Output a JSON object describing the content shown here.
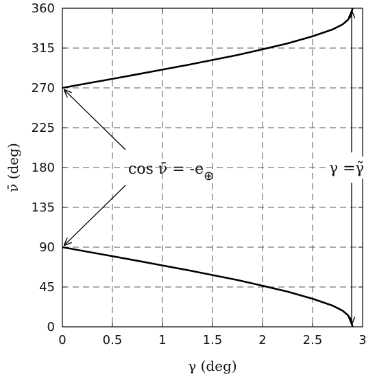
{
  "chart_data": {
    "type": "line",
    "xlabel": "γ (deg)",
    "ylabel": "ν̄ (deg)",
    "xlim": [
      0,
      3
    ],
    "ylim": [
      0,
      360
    ],
    "xticks": [
      "0",
      "0.5",
      "1",
      "1.5",
      "2",
      "2.5",
      "3"
    ],
    "yticks": [
      "0",
      "45",
      "90",
      "135",
      "180",
      "225",
      "270",
      "315",
      "360"
    ],
    "grid": true,
    "series": [
      {
        "x": [
          0,
          0.25,
          0.5,
          0.75,
          1.0,
          1.25,
          1.5,
          1.75,
          2.0,
          2.25,
          2.5,
          2.7,
          2.8,
          2.85,
          2.88,
          2.9
        ],
        "y": [
          270,
          275.1,
          280.2,
          285.4,
          290.6,
          295.9,
          301.5,
          307.2,
          313.6,
          320.2,
          328.3,
          336.0,
          341.8,
          346.5,
          351.0,
          360
        ]
      },
      {
        "x": [
          0,
          0.25,
          0.5,
          0.75,
          1.0,
          1.25,
          1.5,
          1.75,
          2.0,
          2.25,
          2.5,
          2.7,
          2.8,
          2.85,
          2.88,
          2.9
        ],
        "y": [
          90,
          84.9,
          79.8,
          74.6,
          69.4,
          64.1,
          58.5,
          52.8,
          46.4,
          39.8,
          31.7,
          24.0,
          18.2,
          13.5,
          9.0,
          0
        ]
      }
    ],
    "annotations": {
      "left_text_main": "cos ν̄ = -e",
      "left_text_sub": "⊕",
      "right_text_left": "γ = ",
      "right_text_right": "γ̃"
    }
  }
}
